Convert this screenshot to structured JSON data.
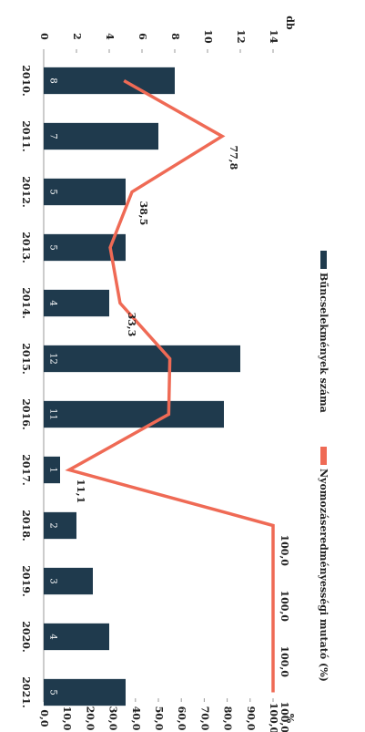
{
  "chart_data": {
    "type": "bar-line",
    "y_label": "db",
    "y2_label": "%",
    "categories": [
      "2010.",
      "2011.",
      "2012.",
      "2013.",
      "2014.",
      "2015.",
      "2016.",
      "2017.",
      "2018.",
      "2019.",
      "2020.",
      "2021."
    ],
    "series": [
      {
        "name": "Bűncselekmények száma",
        "color": "#1f3a4d",
        "type": "bar",
        "values": [
          8,
          7,
          5,
          5,
          4,
          12,
          11,
          1,
          2,
          3,
          4,
          5
        ]
      },
      {
        "name": "Nyomozáseredményességi mutató (%)",
        "color": "#ef6a55",
        "type": "line",
        "axis": "y2",
        "values": [
          35,
          77.8,
          38.5,
          29,
          33.3,
          55,
          54.5,
          11.1,
          100,
          100,
          100,
          100
        ],
        "value_labels": [
          null,
          "77,8",
          "38,5",
          null,
          "33,3",
          null,
          null,
          "11,1",
          "100,0",
          "100,0",
          "100,0",
          "100,0"
        ]
      }
    ],
    "ylim": [
      0,
      14
    ],
    "yticks": [
      0,
      2,
      4,
      6,
      8,
      10,
      12,
      14
    ],
    "y2lim": [
      0,
      100
    ],
    "y2ticks": [
      {
        "value": 0,
        "label": "0,0"
      },
      {
        "value": 10,
        "label": "10,0"
      },
      {
        "value": 20,
        "label": "20,0"
      },
      {
        "value": 30,
        "label": "30,0"
      },
      {
        "value": 40,
        "label": "40,0"
      },
      {
        "value": 50,
        "label": "50,0"
      },
      {
        "value": 60,
        "label": "60,0"
      },
      {
        "value": 70,
        "label": "70,0"
      },
      {
        "value": 80,
        "label": "80,0"
      },
      {
        "value": 90,
        "label": "90,0"
      },
      {
        "value": 100,
        "label": "100,0"
      }
    ]
  }
}
